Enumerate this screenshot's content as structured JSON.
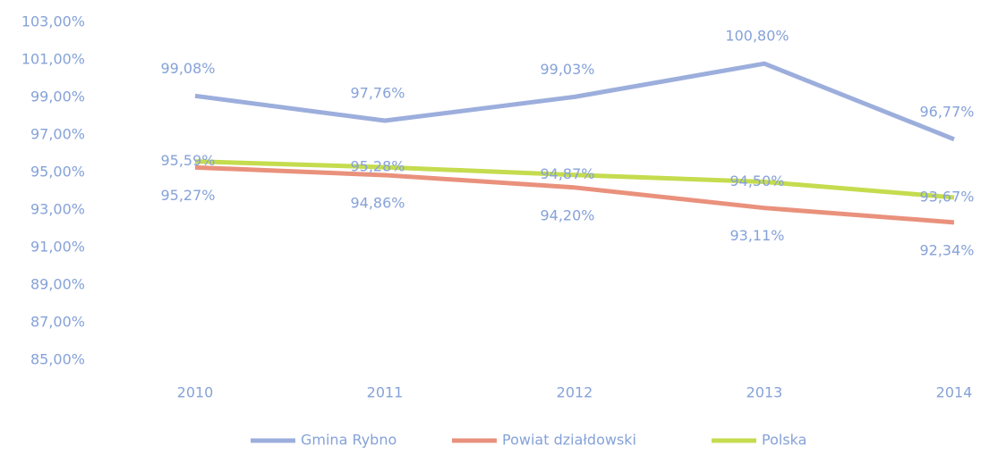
{
  "chart_data": {
    "type": "line",
    "categories": [
      "2010",
      "2011",
      "2012",
      "2013",
      "2014"
    ],
    "series": [
      {
        "name": "Gmina Rybno",
        "color": "#9caedc",
        "values": [
          99.08,
          97.76,
          99.03,
          100.8,
          96.77
        ],
        "value_labels": [
          "99,08%",
          "97,76%",
          "99,03%",
          "100,80%",
          "96,77%"
        ]
      },
      {
        "name": "Powiat działdowski",
        "color": "#e9917c",
        "values": [
          95.27,
          94.86,
          94.2,
          93.11,
          92.34
        ],
        "value_labels": [
          "95,27%",
          "94,86%",
          "94,20%",
          "93,11%",
          "92,34%"
        ]
      },
      {
        "name": "Polska",
        "color": "#c4dc4e",
        "values": [
          95.59,
          95.28,
          94.87,
          94.5,
          93.67
        ],
        "value_labels": [
          "95,59%",
          "95,28%",
          "94,87%",
          "94,50%",
          "93,67%"
        ]
      }
    ],
    "ylim": [
      85,
      103
    ],
    "yticks": [
      {
        "value": 85,
        "label": "85,00%"
      },
      {
        "value": 87,
        "label": "87,00%"
      },
      {
        "value": 89,
        "label": "89,00%"
      },
      {
        "value": 91,
        "label": "91,00%"
      },
      {
        "value": 93,
        "label": "93,00%"
      },
      {
        "value": 95,
        "label": "95,00%"
      },
      {
        "value": 97,
        "label": "97,00%"
      },
      {
        "value": 99,
        "label": "99,00%"
      },
      {
        "value": 101,
        "label": "101,00%"
      },
      {
        "value": 103,
        "label": "103,00%"
      }
    ],
    "grid": false,
    "legend": "bottom"
  }
}
